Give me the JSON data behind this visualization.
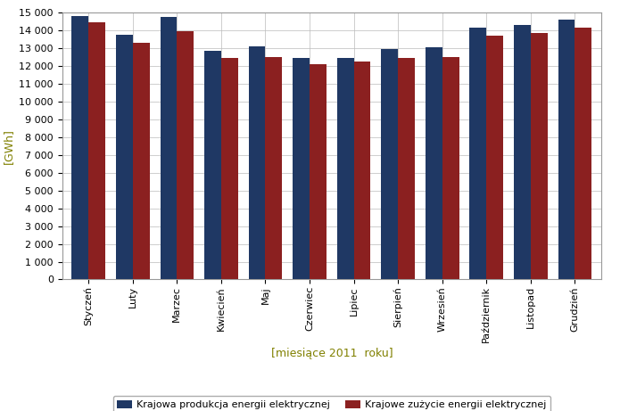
{
  "categories": [
    "Styczeń",
    "Luty",
    "Marzec",
    "Kwiecień",
    "Maj",
    "Czerwiec",
    "Lipiec",
    "Sierpień",
    "Wrzesień",
    "Październik",
    "Listopad",
    "Grudzień"
  ],
  "production": [
    14800,
    13750,
    14750,
    12850,
    13100,
    12450,
    12430,
    12950,
    13050,
    14150,
    14300,
    14600
  ],
  "consumption": [
    14450,
    13300,
    13950,
    12420,
    12480,
    12100,
    12230,
    12450,
    12500,
    13680,
    13820,
    14130
  ],
  "bar_color_prod": "#1F3864",
  "bar_color_cons": "#8B2020",
  "ylabel": "[GWh]",
  "xlabel": "[miesiące 2011  roku]",
  "ylim": [
    0,
    15000
  ],
  "ytick_step": 1000,
  "legend_prod": "Krajowa produkcja energii elektrycznej",
  "legend_cons": "Krajowe zużycie energii elektrycznej",
  "background_color": "#FFFFFF",
  "grid_color": "#BBBBBB",
  "tick_color": "#000000",
  "label_color": "#808000",
  "axis_label_color": "#808000"
}
